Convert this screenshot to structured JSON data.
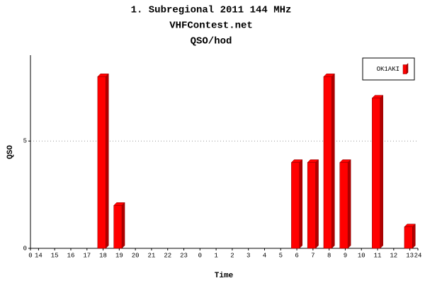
{
  "chart_data": {
    "type": "bar3d",
    "title": "1. Subregional 2011 144 MHz",
    "subtitle": "VHFContest.net",
    "subtitle2": "QSO/hod",
    "y_label": "QSO",
    "x_label": "Time",
    "categories": [
      "14",
      "15",
      "16",
      "17",
      "18",
      "19",
      "20",
      "21",
      "22",
      "23",
      "0",
      "1",
      "2",
      "3",
      "4",
      "5",
      "6",
      "7",
      "8",
      "9",
      "10",
      "11",
      "12",
      "13"
    ],
    "xlim": [
      0,
      24
    ],
    "series": [
      {
        "name": "OK1AKI",
        "color": "#ff0000",
        "values": [
          0,
          0,
          0,
          0,
          8,
          2,
          0,
          0,
          0,
          0,
          0,
          0,
          0,
          0,
          0,
          0,
          4,
          4,
          8,
          4,
          0,
          7,
          0,
          1
        ]
      }
    ],
    "ylim": [
      0,
      9
    ],
    "yticks": [
      0,
      5
    ],
    "grid": true,
    "legend": "top-right"
  }
}
